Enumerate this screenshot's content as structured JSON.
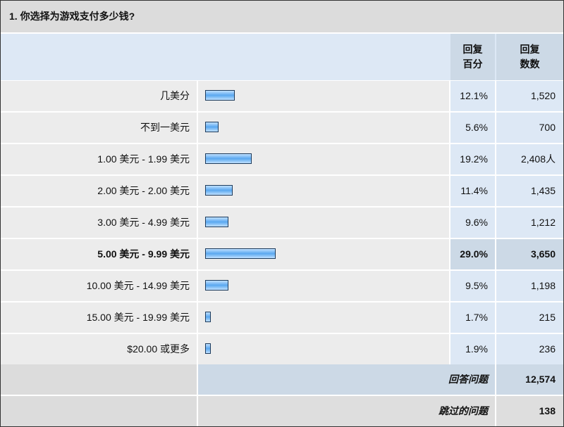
{
  "title": "1. 你选择为游戏支付多少钱?",
  "headers": {
    "percent": "回复\n百分",
    "percent_l1": "回复",
    "percent_l2": "百分",
    "count_l1": "回复",
    "count_l2": "数数"
  },
  "rows": [
    {
      "label": "几美分",
      "percent": "12.1%",
      "value": 12.1,
      "count": "1,520"
    },
    {
      "label": "不到一美元",
      "percent": "5.6%",
      "value": 5.6,
      "count": "700"
    },
    {
      "label": "1.00 美元 - 1.99 美元",
      "percent": "19.2%",
      "value": 19.2,
      "count": "2,408人"
    },
    {
      "label": "2.00 美元 - 2.00 美元",
      "percent": "11.4%",
      "value": 11.4,
      "count": "1,435"
    },
    {
      "label": "3.00 美元 - 4.99 美元",
      "percent": "9.6%",
      "value": 9.6,
      "count": "1,212"
    },
    {
      "label": "5.00 美元 - 9.99 美元",
      "percent": "29.0%",
      "value": 29.0,
      "count": "3,650",
      "highlight": true
    },
    {
      "label": "10.00 美元 - 14.99 美元",
      "percent": "9.5%",
      "value": 9.5,
      "count": "1,198"
    },
    {
      "label": "15.00 美元 - 19.99 美元",
      "percent": "1.7%",
      "value": 1.7,
      "count": "215"
    },
    {
      "label": "$20.00 或更多",
      "percent": "1.9%",
      "value": 1.9,
      "count": "236"
    }
  ],
  "summary": {
    "answered_label": "回答问题",
    "answered": "12,574",
    "skipped_label": "跳过的问题",
    "skipped": "138"
  },
  "colors": {
    "bar": "#5aa8f0",
    "header": "#dde8f5",
    "highlight": "#ccd9e6",
    "row": "#ececec"
  }
}
